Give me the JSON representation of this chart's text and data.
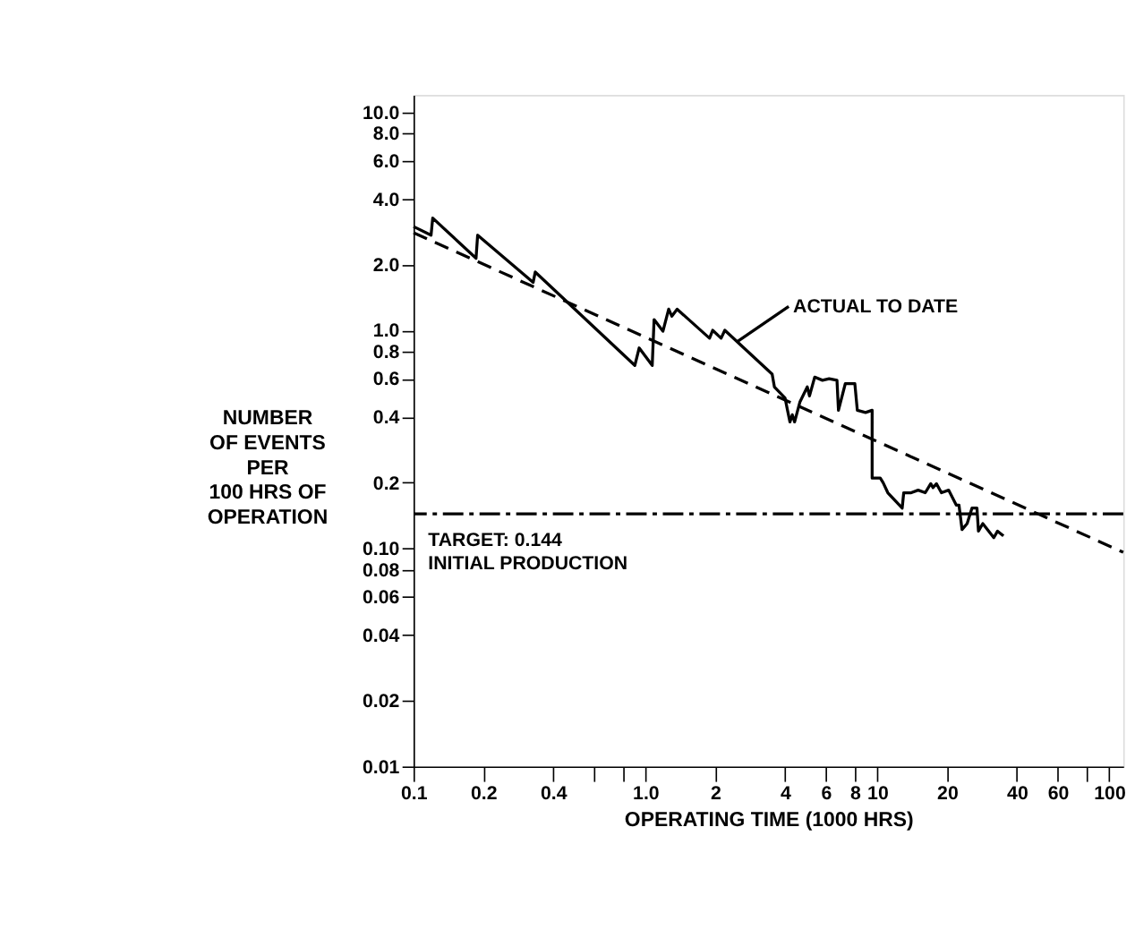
{
  "chart_data": {
    "type": "line",
    "xlabel": "OPERATING TIME (1000 HRS)",
    "ylabel": "NUMBER\nOF EVENTS\nPER\n100 HRS OF\nOPERATION",
    "log": "xy",
    "grid": false,
    "marker": "none",
    "xlim": [
      0.1,
      115
    ],
    "ylim": [
      0.01,
      12
    ],
    "xticks": [
      0.1,
      0.2,
      0.4,
      {
        "value": 0.6,
        "label": null
      },
      {
        "value": 0.8,
        "label": null
      },
      {
        "value": 1,
        "label": "1.0"
      },
      2,
      4,
      6,
      8,
      10,
      20,
      40,
      60,
      {
        "value": 80,
        "label": null
      },
      100
    ],
    "yticks": [
      0.01,
      0.02,
      0.04,
      0.06,
      0.08,
      {
        "value": 0.1,
        "label": "0.10"
      },
      0.2,
      0.4,
      0.6,
      0.8,
      {
        "value": 1,
        "label": "1.0"
      },
      {
        "value": 2,
        "label": "2.0"
      },
      {
        "value": 4,
        "label": "4.0"
      },
      {
        "value": 6,
        "label": "6.0"
      },
      {
        "value": 8,
        "label": "8.0"
      },
      {
        "value": 10,
        "label": "10.0"
      }
    ],
    "series": [
      {
        "color": "#000000",
        "line_style": "solid",
        "x": [
          0.1,
          0.119,
          0.121,
          0.186,
          0.189,
          0.328,
          0.335,
          0.9,
          0.94,
          1.07,
          1.09,
          1.19,
          1.26,
          1.3,
          1.37,
          1.89,
          1.95,
          2.12,
          2.2,
          3.52,
          3.6,
          4.0,
          4.1,
          4.2,
          4.3,
          4.4,
          4.64,
          4.99,
          5.1,
          5.37,
          5.8,
          6.2,
          6.7,
          6.8,
          7.28,
          8.0,
          8.2,
          8.9,
          9.5,
          9.5,
          10.3,
          10.6,
          11.1,
          12.8,
          13.0,
          14.0,
          15.0,
          16.1,
          17.0,
          17.4,
          18.0,
          18.9,
          20.3,
          21.9,
          22.5,
          23.2,
          24.4,
          25.6,
          26.9,
          27.3,
          28.5,
          31.8,
          33.0,
          35.0
        ],
        "values": [
          2.99,
          2.73,
          3.27,
          2.14,
          2.73,
          1.66,
          1.85,
          0.69,
          0.83,
          0.69,
          1.12,
          0.99,
          1.25,
          1.16,
          1.25,
          0.92,
          1.0,
          0.92,
          1.0,
          0.63,
          0.55,
          0.49,
          0.43,
          0.38,
          0.41,
          0.38,
          0.47,
          0.55,
          0.5,
          0.61,
          0.59,
          0.6,
          0.59,
          0.43,
          0.57,
          0.57,
          0.43,
          0.42,
          0.43,
          0.21,
          0.21,
          0.2,
          0.18,
          0.153,
          0.18,
          0.18,
          0.185,
          0.18,
          0.198,
          0.19,
          0.198,
          0.18,
          0.185,
          0.158,
          0.158,
          0.122,
          0.13,
          0.153,
          0.153,
          0.12,
          0.13,
          0.112,
          0.12,
          0.114
        ]
      },
      {
        "color": "#000000",
        "line_style": "dashed",
        "x": [
          0.1,
          115
        ],
        "values": [
          2.8,
          0.096
        ]
      }
    ],
    "ref_lines": [
      {
        "axis": "y",
        "value": 0.144,
        "label": "TARGET: 0.144\nINITIAL PRODUCTION",
        "color": "#000000",
        "line_style": "dashdot"
      }
    ],
    "annotations": [
      {
        "text": "ACTUAL TO DATE",
        "x": 2.5,
        "y": 0.89
      }
    ]
  }
}
